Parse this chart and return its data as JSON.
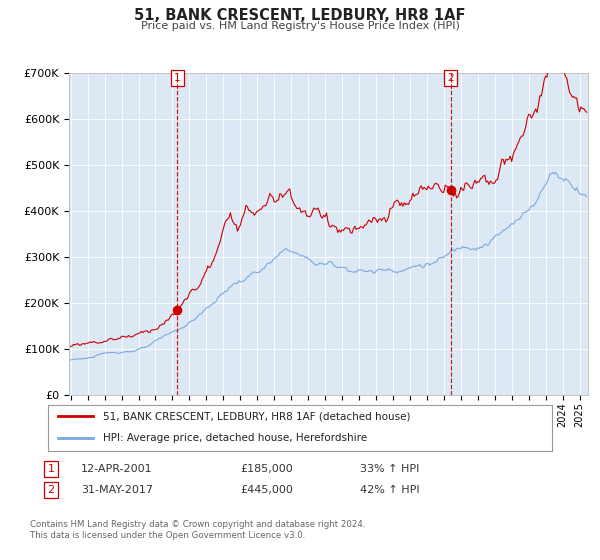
{
  "title": "51, BANK CRESCENT, LEDBURY, HR8 1AF",
  "subtitle": "Price paid vs. HM Land Registry's House Price Index (HPI)",
  "bg_color": "#dce9f5",
  "outer_bg_color": "#ffffff",
  "red_line_color": "#cc0000",
  "blue_line_color": "#7aaadd",
  "marker1_x": 2001.28,
  "marker1_y": 185000,
  "marker2_x": 2017.41,
  "marker2_y": 445000,
  "vline_color": "#cc0000",
  "ylim": [
    0,
    700000
  ],
  "xlim_start": 1994.9,
  "xlim_end": 2025.5,
  "ytick_labels": [
    "£0",
    "£100K",
    "£200K",
    "£300K",
    "£400K",
    "£500K",
    "£600K",
    "£700K"
  ],
  "ytick_values": [
    0,
    100000,
    200000,
    300000,
    400000,
    500000,
    600000,
    700000
  ],
  "legend_label_red": "51, BANK CRESCENT, LEDBURY, HR8 1AF (detached house)",
  "legend_label_blue": "HPI: Average price, detached house, Herefordshire",
  "annotation1_label": "1",
  "annotation1_date": "12-APR-2001",
  "annotation1_price": "£185,000",
  "annotation1_pct": "33% ↑ HPI",
  "annotation2_label": "2",
  "annotation2_date": "31-MAY-2017",
  "annotation2_price": "£445,000",
  "annotation2_pct": "42% ↑ HPI",
  "footnote1": "Contains HM Land Registry data © Crown copyright and database right 2024.",
  "footnote2": "This data is licensed under the Open Government Licence v3.0."
}
